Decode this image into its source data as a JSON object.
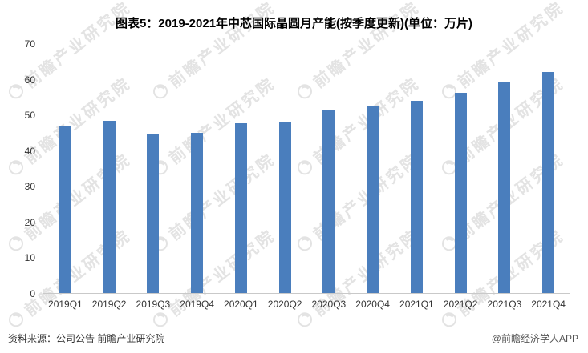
{
  "title": "图表5：2019-2021年中芯国际晶圆月产能(按季度更新)(单位：万片)",
  "chart_data": {
    "type": "bar",
    "categories": [
      "2019Q1",
      "2019Q2",
      "2019Q3",
      "2019Q4",
      "2020Q1",
      "2020Q2",
      "2020Q3",
      "2020Q4",
      "2021Q1",
      "2021Q2",
      "2021Q3",
      "2021Q4"
    ],
    "values": [
      47.0,
      48.3,
      44.8,
      45.0,
      47.8,
      48.0,
      51.3,
      52.4,
      54.1,
      56.2,
      59.4,
      62.1
    ],
    "title": "图表5：2019-2021年中芯国际晶圆月产能(按季度更新)(单位：万片)",
    "xlabel": "",
    "ylabel": "",
    "ylim": [
      0,
      70
    ],
    "yticks": [
      0,
      10,
      20,
      30,
      40,
      50,
      60,
      70
    ],
    "grid": false,
    "legend": "none",
    "bar_color": "#4a7ebd"
  },
  "footer": {
    "source": "资料来源：公司公告 前瞻产业研究院",
    "credit": "@前瞻经济学人APP"
  },
  "watermark": {
    "text": "前瞻产业研究院"
  }
}
